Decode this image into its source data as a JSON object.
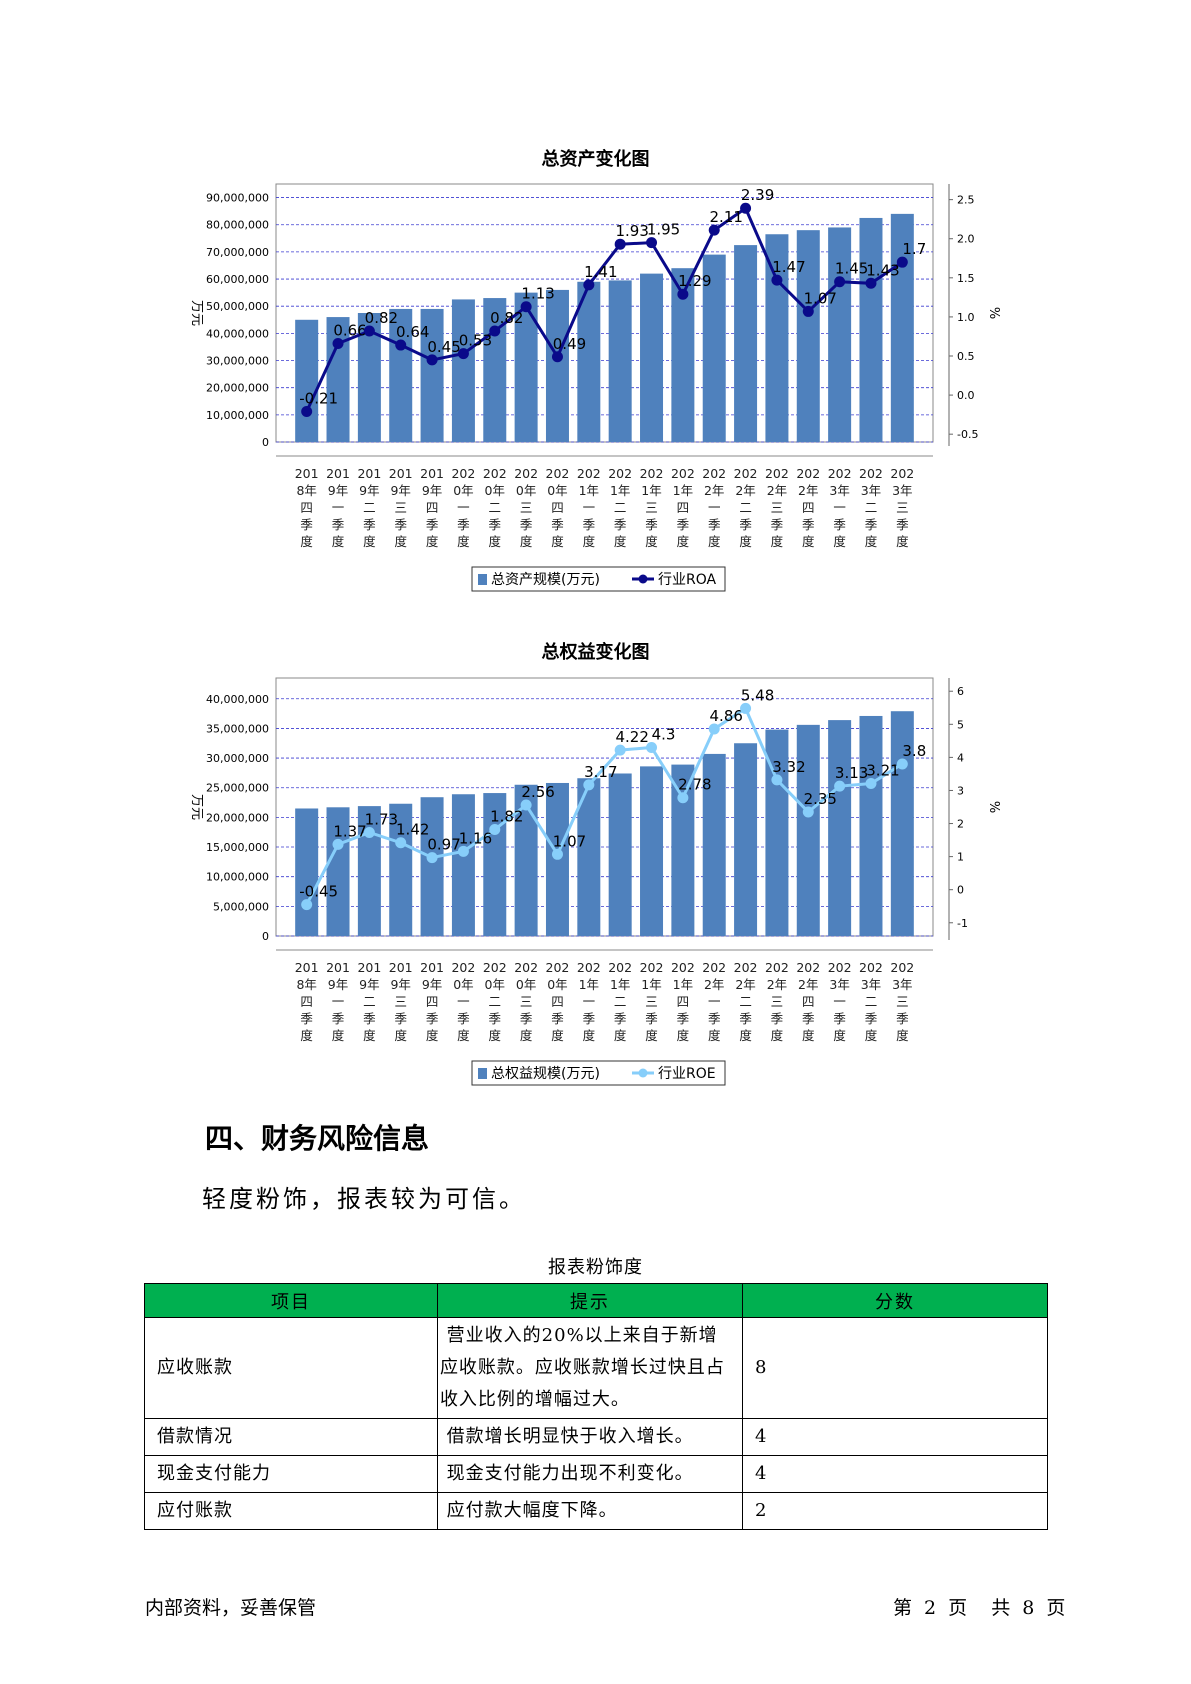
{
  "charts": [
    {
      "title": "总资产变化图",
      "chart_data": {
        "type": "bar+line",
        "categories": [
          "2018年四季度",
          "2019年一季度",
          "2019年二季度",
          "2019年三季度",
          "2019年四季度",
          "2020年一季度",
          "2020年二季度",
          "2020年三季度",
          "2020年四季度",
          "2021年一季度",
          "2021年二季度",
          "2021年三季度",
          "2021年四季度",
          "2022年一季度",
          "2022年二季度",
          "2022年三季度",
          "2022年四季度",
          "2023年一季度",
          "2023年二季度",
          "2023年三季度"
        ],
        "category_lines": [
          [
            "201",
            "8年",
            "四",
            "季",
            "度"
          ],
          [
            "201",
            "9年",
            "一",
            "季",
            "度"
          ],
          [
            "201",
            "9年",
            "二",
            "季",
            "度"
          ],
          [
            "201",
            "9年",
            "三",
            "季",
            "度"
          ],
          [
            "201",
            "9年",
            "四",
            "季",
            "度"
          ],
          [
            "202",
            "0年",
            "一",
            "季",
            "度"
          ],
          [
            "202",
            "0年",
            "二",
            "季",
            "度"
          ],
          [
            "202",
            "0年",
            "三",
            "季",
            "度"
          ],
          [
            "202",
            "0年",
            "四",
            "季",
            "度"
          ],
          [
            "202",
            "1年",
            "一",
            "季",
            "度"
          ],
          [
            "202",
            "1年",
            "二",
            "季",
            "度"
          ],
          [
            "202",
            "1年",
            "三",
            "季",
            "度"
          ],
          [
            "202",
            "1年",
            "四",
            "季",
            "度"
          ],
          [
            "202",
            "2年",
            "一",
            "季",
            "度"
          ],
          [
            "202",
            "2年",
            "二",
            "季",
            "度"
          ],
          [
            "202",
            "2年",
            "三",
            "季",
            "度"
          ],
          [
            "202",
            "2年",
            "四",
            "季",
            "度"
          ],
          [
            "202",
            "3年",
            "一",
            "季",
            "度"
          ],
          [
            "202",
            "3年",
            "二",
            "季",
            "度"
          ],
          [
            "202",
            "3年",
            "三",
            "季",
            "度"
          ]
        ],
        "series": [
          {
            "name": "总资产规模(万元)",
            "kind": "bar",
            "axis": "left",
            "values": [
              45000000,
              46000000,
              47500000,
              49000000,
              49000000,
              52500000,
              53000000,
              55000000,
              56000000,
              59000000,
              59500000,
              62000000,
              64000000,
              69000000,
              72500000,
              76500000,
              78000000,
              79000000,
              82500000,
              84000000
            ]
          },
          {
            "name": "行业ROA",
            "kind": "line",
            "axis": "right",
            "values": [
              -0.21,
              0.66,
              0.82,
              0.64,
              0.45,
              0.53,
              0.82,
              1.13,
              0.49,
              1.41,
              1.93,
              1.95,
              1.29,
              2.11,
              2.39,
              1.47,
              1.07,
              1.45,
              1.43,
              1.7
            ],
            "labels": [
              "-0.21",
              "0.66",
              "0.82",
              "0.64",
              "0.45",
              "0.53",
              "0.82",
              "1.13",
              "0.49",
              "1.41",
              "1.93",
              "1.95",
              "1.29",
              "2.11",
              "2.39",
              "1.47",
              "1.07",
              "1.45",
              "1.43",
              "1.7"
            ]
          }
        ],
        "ylabel": "万元",
        "y2label": "%",
        "ylim": [
          0,
          95000000
        ],
        "y_ticks": [
          0,
          10000000,
          20000000,
          30000000,
          40000000,
          50000000,
          60000000,
          70000000,
          80000000,
          90000000
        ],
        "y_tick_labels": [
          "0",
          "10,000,000",
          "20,000,000",
          "30,000,000",
          "40,000,000",
          "50,000,000",
          "60,000,000",
          "70,000,000",
          "80,000,000",
          "90,000,000"
        ],
        "y2lim": [
          -0.6,
          2.7
        ],
        "y2_ticks": [
          -0.5,
          0.0,
          0.5,
          1.0,
          1.5,
          2.0,
          2.5
        ],
        "y2_tick_labels": [
          "-0.5",
          "0.0",
          "0.5",
          "1.0",
          "1.5",
          "2.0",
          "2.5"
        ],
        "grid": true,
        "legend": "bottom"
      }
    },
    {
      "title": "总权益变化图",
      "chart_data": {
        "type": "bar+line",
        "categories": [
          "2018年四季度",
          "2019年一季度",
          "2019年二季度",
          "2019年三季度",
          "2019年四季度",
          "2020年一季度",
          "2020年二季度",
          "2020年三季度",
          "2020年四季度",
          "2021年一季度",
          "2021年二季度",
          "2021年三季度",
          "2021年四季度",
          "2022年一季度",
          "2022年二季度",
          "2022年三季度",
          "2022年四季度",
          "2023年一季度",
          "2023年二季度",
          "2023年三季度"
        ],
        "category_lines": [
          [
            "201",
            "8年",
            "四",
            "季",
            "度"
          ],
          [
            "201",
            "9年",
            "一",
            "季",
            "度"
          ],
          [
            "201",
            "9年",
            "二",
            "季",
            "度"
          ],
          [
            "201",
            "9年",
            "三",
            "季",
            "度"
          ],
          [
            "201",
            "9年",
            "四",
            "季",
            "度"
          ],
          [
            "202",
            "0年",
            "一",
            "季",
            "度"
          ],
          [
            "202",
            "0年",
            "二",
            "季",
            "度"
          ],
          [
            "202",
            "0年",
            "三",
            "季",
            "度"
          ],
          [
            "202",
            "0年",
            "四",
            "季",
            "度"
          ],
          [
            "202",
            "1年",
            "一",
            "季",
            "度"
          ],
          [
            "202",
            "1年",
            "二",
            "季",
            "度"
          ],
          [
            "202",
            "1年",
            "三",
            "季",
            "度"
          ],
          [
            "202",
            "1年",
            "四",
            "季",
            "度"
          ],
          [
            "202",
            "2年",
            "一",
            "季",
            "度"
          ],
          [
            "202",
            "2年",
            "二",
            "季",
            "度"
          ],
          [
            "202",
            "2年",
            "三",
            "季",
            "度"
          ],
          [
            "202",
            "2年",
            "四",
            "季",
            "度"
          ],
          [
            "202",
            "3年",
            "一",
            "季",
            "度"
          ],
          [
            "202",
            "3年",
            "二",
            "季",
            "度"
          ],
          [
            "202",
            "3年",
            "三",
            "季",
            "度"
          ]
        ],
        "series": [
          {
            "name": "总权益规模(万元)",
            "kind": "bar",
            "axis": "left",
            "values": [
              21500000,
              21700000,
              21900000,
              22300000,
              23400000,
              23900000,
              24100000,
              25500000,
              25800000,
              26600000,
              27400000,
              28600000,
              28900000,
              30700000,
              32500000,
              34800000,
              35600000,
              36400000,
              37100000,
              37900000
            ]
          },
          {
            "name": "行业ROE",
            "kind": "line",
            "axis": "right",
            "values": [
              -0.45,
              1.37,
              1.73,
              1.42,
              0.97,
              1.16,
              1.82,
              2.56,
              1.07,
              3.17,
              4.22,
              4.3,
              2.78,
              4.86,
              5.48,
              3.32,
              2.35,
              3.13,
              3.21,
              3.8
            ],
            "labels": [
              "-0.45",
              "1.37",
              "1.73",
              "1.42",
              "0.97",
              "1.16",
              "1.82",
              "2.56",
              "1.07",
              "3.17",
              "4.22",
              "4.3",
              "2.78",
              "4.86",
              "5.48",
              "3.32",
              "2.35",
              "3.13",
              "3.21",
              "3.8"
            ]
          }
        ],
        "ylabel": "万元",
        "y2label": "%",
        "ylim": [
          0,
          43500000
        ],
        "y_ticks": [
          0,
          5000000,
          10000000,
          15000000,
          20000000,
          25000000,
          30000000,
          35000000,
          40000000
        ],
        "y_tick_labels": [
          "0",
          "5,000,000",
          "10,000,000",
          "15,000,000",
          "20,000,000",
          "25,000,000",
          "30,000,000",
          "35,000,000",
          "40,000,000"
        ],
        "y2lim": [
          -1.4,
          6.4
        ],
        "y2_ticks": [
          -1,
          0,
          1,
          2,
          3,
          4,
          5,
          6
        ],
        "y2_tick_labels": [
          "-1",
          "0",
          "1",
          "2",
          "3",
          "4",
          "5",
          "6"
        ],
        "grid": true,
        "legend": "bottom"
      }
    }
  ],
  "colors": {
    "bar": "#4f81bd",
    "line1": "#0a0a8a",
    "line2": "#87cefa",
    "grid": "#3a3ad0",
    "table_header": "#00b050"
  },
  "section": {
    "title": "四、财务风险信息",
    "summary": "轻度粉饰，报表较为可信。"
  },
  "table": {
    "title": "报表粉饰度",
    "headers": [
      "项目",
      "提示",
      "分数"
    ],
    "rows": [
      {
        "item": "应收账款",
        "hint": " 营业收入的20%以上来自于新增应收账款。应收账款增长过快且占收入比例的增幅过大。",
        "score": "8"
      },
      {
        "item": "借款情况",
        "hint": " 借款增长明显快于收入增长。",
        "score": "4"
      },
      {
        "item": "现金支付能力",
        "hint": " 现金支付能力出现不利变化。",
        "score": "4"
      },
      {
        "item": "应付账款",
        "hint": " 应付款大幅度下降。",
        "score": "2"
      }
    ]
  },
  "footer": {
    "left": "内部资料，妥善保管",
    "right": "第 2 页  共 8 页"
  }
}
